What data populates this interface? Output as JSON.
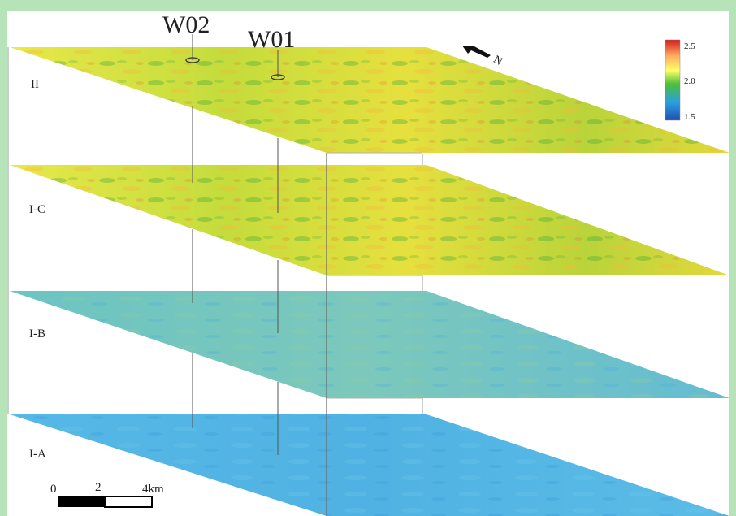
{
  "wells": [
    {
      "name": "W02"
    },
    {
      "name": "W01"
    }
  ],
  "layers": [
    {
      "label": "II",
      "palette": "yellow-green"
    },
    {
      "label": "I-C",
      "palette": "yellow-green"
    },
    {
      "label": "I-B",
      "palette": "cyan"
    },
    {
      "label": "I-A",
      "palette": "light-blue"
    }
  ],
  "north_arrow": {
    "label": "N"
  },
  "colorbar": {
    "max_label": "2.5",
    "mid_label": "2.0",
    "min_label": "1.5",
    "colors": [
      "#d7191c",
      "#fdae61",
      "#ffff66",
      "#4cbf3a",
      "#2b9fe0",
      "#1f4fb0"
    ]
  },
  "scale_bar": {
    "tick_labels": [
      "0",
      "2",
      "4km"
    ]
  },
  "colors": {
    "frame": "#b6e4b8",
    "line": "#555555"
  }
}
